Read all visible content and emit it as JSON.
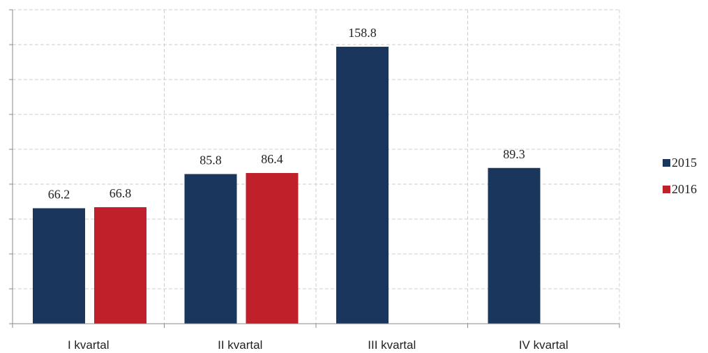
{
  "chart_data": {
    "type": "bar",
    "categories": [
      "I kvartal",
      "II kvartal",
      "III kvartal",
      "IV kvartal"
    ],
    "series": [
      {
        "name": "2015",
        "color": "#1b365d",
        "values": [
          66.2,
          85.8,
          158.8,
          89.3
        ]
      },
      {
        "name": "2016",
        "color": "#c0202a",
        "values": [
          66.8,
          86.4,
          null,
          null
        ]
      }
    ],
    "value_labels": {
      "2015": [
        "66.2",
        "85.8",
        "158.8",
        "89.3"
      ],
      "2016": [
        "66.8",
        "86.4",
        "",
        ""
      ]
    },
    "ylim": [
      0,
      180
    ],
    "y_tick_step": 20,
    "grid": true,
    "legend": "right",
    "title": "",
    "xlabel": "",
    "ylabel": ""
  }
}
